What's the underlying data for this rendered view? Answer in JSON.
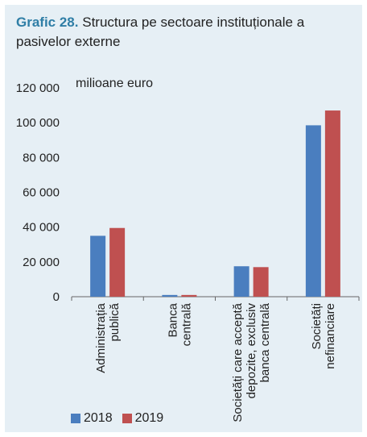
{
  "title": {
    "label": "Grafic 28.",
    "text": "Structura pe sectoare instituționale a pasivelor externe"
  },
  "chart_data": {
    "type": "bar",
    "unit_label": "milioane euro",
    "categories": [
      [
        "Administrația",
        "publică"
      ],
      [
        "Banca",
        "centrală"
      ],
      [
        "Societăți care acceptă",
        "depozite, exclusiv",
        "banca centrală"
      ],
      [
        "Societăți",
        "nefinanciare"
      ]
    ],
    "series": [
      {
        "name": "2018",
        "color": "#4a7ebf",
        "values": [
          35000,
          1000,
          17500,
          98500
        ]
      },
      {
        "name": "2019",
        "color": "#bf5050",
        "values": [
          39500,
          1000,
          17000,
          107000
        ]
      }
    ],
    "ylim": [
      0,
      120000
    ],
    "yticks": [
      "0",
      "20 000",
      "40 000",
      "60 000",
      "80 000",
      "100 000",
      "120 000"
    ],
    "ytick_values": [
      0,
      20000,
      40000,
      60000,
      80000,
      100000,
      120000
    ],
    "grid": false,
    "legend_position": "bottom-left"
  }
}
